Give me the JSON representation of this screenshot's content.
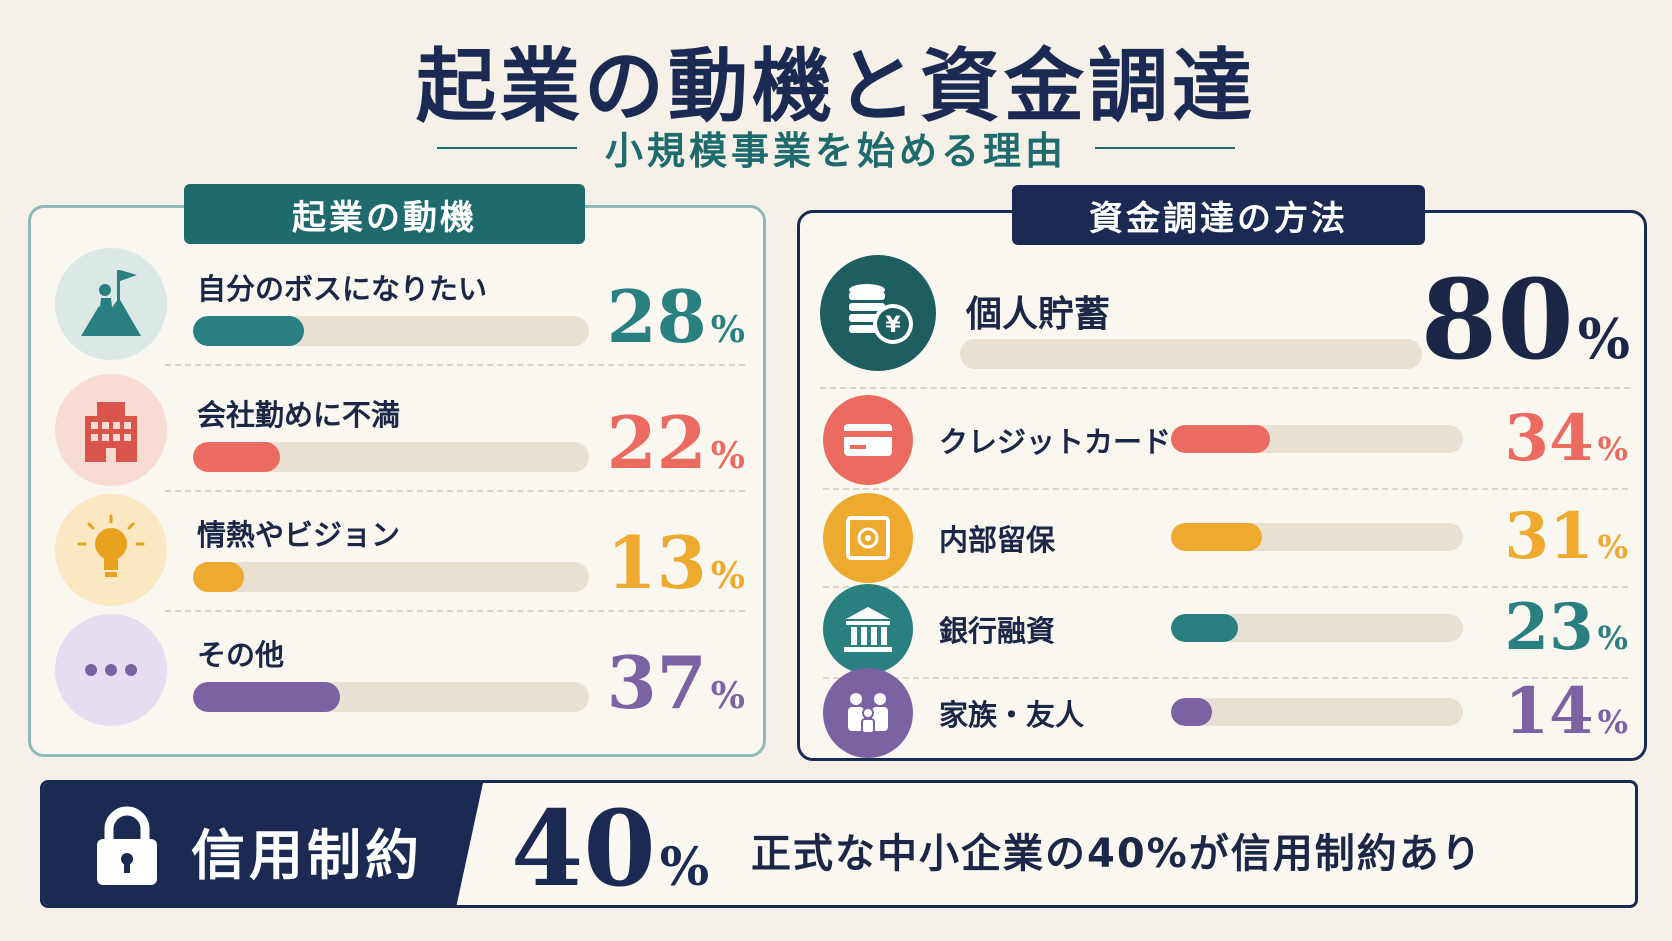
{
  "title": "起業の動機と資金調達",
  "subtitle": "小規模事業を始める理由",
  "colors": {
    "navy": "#1b2a52",
    "teal": "#2a7f80",
    "coral": "#ec6b60",
    "amber": "#eeaa2e",
    "purple": "#7b62a3",
    "track": "#e8e1d3"
  },
  "unit": "%",
  "chart_data": [
    {
      "type": "bar",
      "title": "起業の動機",
      "categories": [
        "自分のボスになりたい",
        "会社勤めに不満",
        "情熱やビジョン",
        "その他"
      ],
      "values": [
        28,
        22,
        13,
        37
      ],
      "value_labels": [
        "28",
        "22",
        "13",
        "37"
      ],
      "icons": [
        "flag-summit-icon",
        "office-building-icon",
        "lightbulb-icon",
        "ellipsis-icon"
      ],
      "colors": [
        "#2a7f80",
        "#ec6b60",
        "#eeaa2e",
        "#7b62a3"
      ],
      "ylim": [
        0,
        100
      ]
    },
    {
      "type": "bar",
      "title": "資金調達の方法",
      "categories": [
        "個人貯蓄",
        "クレジットカード",
        "内部留保",
        "銀行融資",
        "家族・友人"
      ],
      "values": [
        80,
        34,
        31,
        23,
        14
      ],
      "value_labels": [
        "80",
        "34",
        "31",
        "23",
        "14"
      ],
      "icons": [
        "coins-yen-icon",
        "credit-card-icon",
        "safe-icon",
        "bank-icon",
        "family-icon"
      ],
      "colors": [
        "#1f5e60",
        "#ec6b60",
        "#eeaa2e",
        "#2a7f80",
        "#7b62a3"
      ],
      "ylim": [
        0,
        100
      ]
    }
  ],
  "banner": {
    "label": "信用制約",
    "value": "40",
    "unit": "%",
    "text": "正式な中小企業の40%が信用制約あり",
    "icon": "lock-icon"
  }
}
